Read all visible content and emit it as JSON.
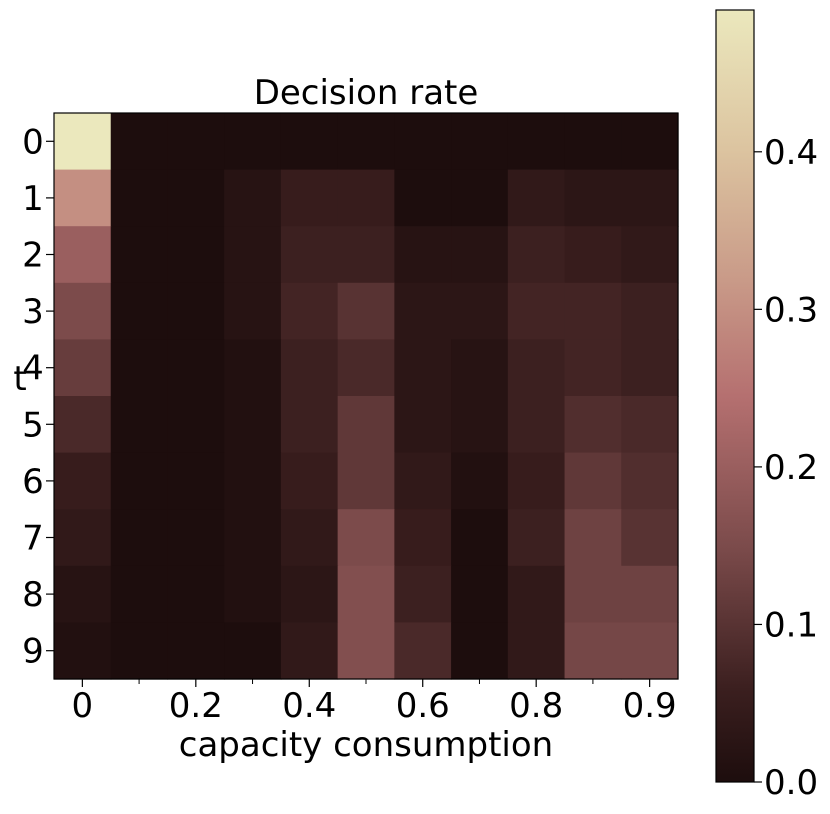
{
  "chart_data": {
    "type": "heatmap",
    "title": "Decision rate",
    "xlabel": "capacity consumption",
    "ylabel": "t",
    "x_tick_labels": [
      "0",
      "0.2",
      "0.4",
      "0.6",
      "0.8",
      "0.9"
    ],
    "x_tick_columns": [
      0,
      2,
      4,
      6,
      8,
      10
    ],
    "minor_tick_columns": [
      1,
      3,
      5,
      7,
      9
    ],
    "y_tick_labels": [
      "0",
      "1",
      "2",
      "3",
      "4",
      "5",
      "6",
      "7",
      "8",
      "9"
    ],
    "n_cols": 11,
    "n_rows": 10,
    "values": [
      [
        0.49,
        0.0,
        0.0,
        0.0,
        0.0,
        0.0,
        0.0,
        0.0,
        0.0,
        0.0,
        0.0
      ],
      [
        0.3,
        0.0,
        0.0,
        0.02,
        0.05,
        0.05,
        0.0,
        0.0,
        0.04,
        0.03,
        0.03
      ],
      [
        0.2,
        0.0,
        0.0,
        0.02,
        0.06,
        0.06,
        0.02,
        0.02,
        0.06,
        0.05,
        0.04
      ],
      [
        0.15,
        0.0,
        0.0,
        0.02,
        0.07,
        0.1,
        0.03,
        0.03,
        0.07,
        0.07,
        0.06
      ],
      [
        0.12,
        0.0,
        0.0,
        0.01,
        0.06,
        0.08,
        0.03,
        0.02,
        0.06,
        0.07,
        0.06
      ],
      [
        0.08,
        0.0,
        0.0,
        0.01,
        0.06,
        0.11,
        0.03,
        0.02,
        0.06,
        0.09,
        0.08
      ],
      [
        0.05,
        0.0,
        0.0,
        0.01,
        0.05,
        0.11,
        0.04,
        0.01,
        0.05,
        0.11,
        0.09
      ],
      [
        0.04,
        0.0,
        0.0,
        0.01,
        0.04,
        0.15,
        0.05,
        0.0,
        0.06,
        0.13,
        0.1
      ],
      [
        0.02,
        0.0,
        0.0,
        0.01,
        0.03,
        0.16,
        0.06,
        0.0,
        0.04,
        0.13,
        0.13
      ],
      [
        0.01,
        0.0,
        0.0,
        0.0,
        0.04,
        0.16,
        0.08,
        0.0,
        0.04,
        0.14,
        0.14
      ]
    ],
    "colorbar": {
      "min": 0.0,
      "max": 0.49,
      "tick_values": [
        0.0,
        0.1,
        0.2,
        0.3,
        0.4
      ],
      "tick_labels": [
        "0.0",
        "0.1",
        "0.2",
        "0.3",
        "0.4"
      ]
    },
    "colormap_stops": [
      {
        "pos": 0.0,
        "color": "#1d0d0d"
      },
      {
        "pos": 0.12,
        "color": "#3b1f1f"
      },
      {
        "pos": 0.3,
        "color": "#7a4a4a"
      },
      {
        "pos": 0.5,
        "color": "#b57070"
      },
      {
        "pos": 0.65,
        "color": "#c99a88"
      },
      {
        "pos": 0.82,
        "color": "#dcc4a0"
      },
      {
        "pos": 1.0,
        "color": "#ebe8bd"
      }
    ],
    "grid": false,
    "legend": "colorbar-right"
  }
}
